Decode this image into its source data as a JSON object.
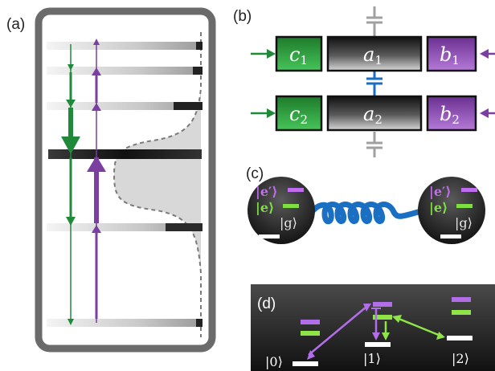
{
  "panels": {
    "a": "(a)",
    "b": "(b)",
    "c": "(c)",
    "d": "(d)"
  },
  "panel_b": {
    "modes": [
      {
        "id": "c1",
        "base": "c",
        "sub": "1",
        "color": "#2e9e3a"
      },
      {
        "id": "a1",
        "base": "a",
        "sub": "1",
        "color": "#222222"
      },
      {
        "id": "b1",
        "base": "b",
        "sub": "1",
        "color": "#8e4fb0"
      },
      {
        "id": "c2",
        "base": "c",
        "sub": "2",
        "color": "#2e9e3a"
      },
      {
        "id": "a2",
        "base": "a",
        "sub": "2",
        "color": "#222222"
      },
      {
        "id": "b2",
        "base": "b",
        "sub": "2",
        "color": "#8e4fb0"
      }
    ],
    "colors": {
      "coupler": "#1b6fc2",
      "ground_cap": "#a0a0a0"
    }
  },
  "panel_c": {
    "left_atom": {
      "e_prime": "|e′⟩",
      "e": "|e⟩",
      "g": "|g⟩"
    },
    "right_atom": {
      "e_prime": "|e′⟩",
      "e": "|e⟩",
      "g": "|g⟩"
    },
    "colors": {
      "e_prime": "#c06cf0",
      "e": "#7ee040",
      "link": "#1b6fc2"
    }
  },
  "panel_d": {
    "states": [
      "|0⟩",
      "|1⟩",
      "|2⟩"
    ],
    "colors": {
      "purple": "#b26de8",
      "green": "#8fe548",
      "ground": "#ffffff"
    }
  },
  "colors": {
    "green": "#1f8a3a",
    "purple": "#7a3fa0",
    "frame": "#6b6b6b"
  }
}
